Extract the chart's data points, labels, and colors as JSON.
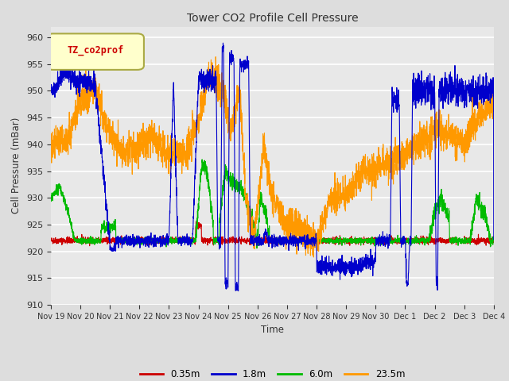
{
  "title": "Tower CO2 Profile Cell Pressure",
  "ylabel": "Cell Pressure (mBar)",
  "xlabel": "Time",
  "legend_label": "TZ_co2prof",
  "ylim": [
    910,
    962
  ],
  "yticks": [
    910,
    915,
    920,
    925,
    930,
    935,
    940,
    945,
    950,
    955,
    960
  ],
  "series_labels": [
    "0.35m",
    "1.8m",
    "6.0m",
    "23.5m"
  ],
  "series_colors": [
    "#cc0000",
    "#0000cc",
    "#00bb00",
    "#ff9900"
  ],
  "background_color": "#dddddd",
  "plot_bg_color": "#e8e8e8",
  "tick_labels": [
    "Nov 19",
    "Nov 20",
    "Nov 21",
    "Nov 22",
    "Nov 23",
    "Nov 24",
    "Nov 25",
    "Nov 26",
    "Nov 27",
    "Nov 28",
    "Nov 29",
    "Nov 30",
    "Dec 1",
    "Dec 2",
    "Dec 3",
    "Dec 4"
  ],
  "n_points": 3000
}
